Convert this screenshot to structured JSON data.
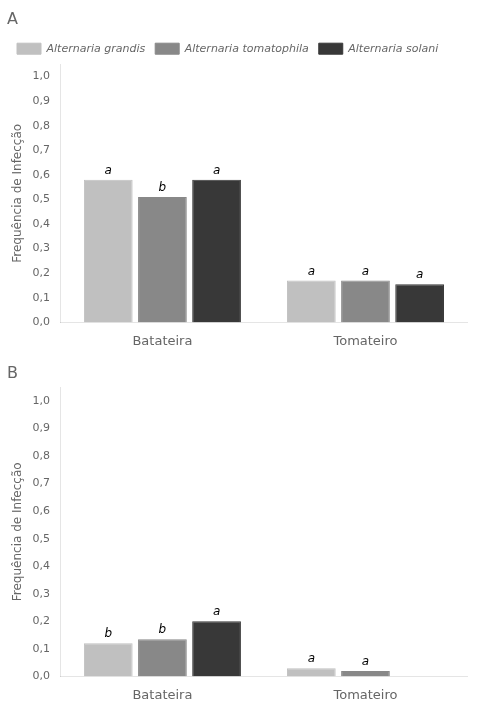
{
  "chart_data": [
    {
      "type": "bar",
      "title": "A",
      "y_label": "Frequência de Infecção",
      "categories": [
        "Batateira",
        "Tomateiro"
      ],
      "series": [
        {
          "name": "Alternaria grandis",
          "color": "#c0c0c0",
          "values": [
            0.58,
            0.17
          ]
        },
        {
          "name": "Alternaria tomatophila",
          "color": "#888888",
          "values": [
            0.51,
            0.17
          ]
        },
        {
          "name": "Alternaria solani",
          "color": "#383838",
          "values": [
            0.58,
            0.155
          ]
        }
      ],
      "annotations": [
        {
          "text": "a",
          "x": "Batateira",
          "series": "Alternaria grandis"
        },
        {
          "text": "b",
          "x": "Batateira",
          "series": "Alternaria tomatophila"
        },
        {
          "text": "a",
          "x": "Batateira",
          "series": "Alternaria solani"
        },
        {
          "text": "a",
          "x": "Tomateiro",
          "series": "Alternaria grandis"
        },
        {
          "text": "a",
          "x": "Tomateiro",
          "series": "Alternaria tomatophila"
        },
        {
          "text": "a",
          "x": "Tomateiro",
          "series": "Alternaria solani"
        }
      ],
      "ylim": [
        0,
        1.05
      ],
      "yticks": [
        {
          "value": 0.0,
          "label": "0,0"
        },
        {
          "value": 0.1,
          "label": "0,1"
        },
        {
          "value": 0.2,
          "label": "0,2"
        },
        {
          "value": 0.3,
          "label": "0,3"
        },
        {
          "value": 0.4,
          "label": "0,4"
        },
        {
          "value": 0.5,
          "label": "0,5"
        },
        {
          "value": 0.6,
          "label": "0,6"
        },
        {
          "value": 0.7,
          "label": "0,7"
        },
        {
          "value": 0.8,
          "label": "0,8"
        },
        {
          "value": 0.9,
          "label": "0,9"
        },
        {
          "value": 1.0,
          "label": "1,0"
        }
      ],
      "grid": false,
      "legend": "upper left"
    },
    {
      "type": "bar",
      "title": "B",
      "y_label": "Frequência de Infecção",
      "categories": [
        "Batateira",
        "Tomateiro"
      ],
      "series": [
        {
          "name": "Alternaria grandis",
          "color": "#c0c0c0",
          "values": [
            0.12,
            0.03
          ]
        },
        {
          "name": "Alternaria tomatophila",
          "color": "#888888",
          "values": [
            0.135,
            0.02
          ]
        },
        {
          "name": "Alternaria solani",
          "color": "#383838",
          "values": [
            0.2,
            null
          ]
        }
      ],
      "annotations": [
        {
          "text": "b",
          "x": "Batateira",
          "series": "Alternaria grandis"
        },
        {
          "text": "b",
          "x": "Batateira",
          "series": "Alternaria tomatophila"
        },
        {
          "text": "a",
          "x": "Batateira",
          "series": "Alternaria solani"
        },
        {
          "text": "a",
          "x": "Tomateiro",
          "series": "Alternaria grandis"
        },
        {
          "text": "a",
          "x": "Tomateiro",
          "series": "Alternaria tomatophila"
        }
      ],
      "ylim": [
        0,
        1.05
      ],
      "yticks": [
        {
          "value": 0.0,
          "label": "0,0"
        },
        {
          "value": 0.1,
          "label": "0,1"
        },
        {
          "value": 0.2,
          "label": "0,2"
        },
        {
          "value": 0.3,
          "label": "0,3"
        },
        {
          "value": 0.4,
          "label": "0,4"
        },
        {
          "value": 0.5,
          "label": "0,5"
        },
        {
          "value": 0.6,
          "label": "0,6"
        },
        {
          "value": 0.7,
          "label": "0,7"
        },
        {
          "value": 0.8,
          "label": "0,8"
        },
        {
          "value": 0.9,
          "label": "0,9"
        },
        {
          "value": 1.0,
          "label": "1,0"
        }
      ],
      "grid": false
    }
  ]
}
